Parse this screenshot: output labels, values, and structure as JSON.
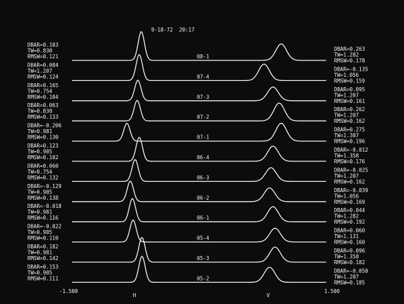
{
  "header": {
    "timestamp": "9-18-72  20:17"
  },
  "rows": [
    {
      "label": "08-1",
      "left": [
        "DBAR=0.103",
        "TW=0.830",
        "RMSW=0.121"
      ],
      "right": [
        "DBAR=0.263",
        "TW=1.282",
        "RMSW=0.178"
      ]
    },
    {
      "label": "07-4",
      "left": [
        "DBAR=0.084",
        "TW=1.207",
        "RMSW=0.124"
      ],
      "right": [
        "DBAR=-0.135",
        "TW=1.056",
        "RMSW=0.159"
      ]
    },
    {
      "label": "07-3",
      "left": [
        "DBAR=0.165",
        "TW=0.754",
        "RMSW=0.104"
      ],
      "right": [
        "DBAR=0.095",
        "TW=1.207",
        "RMSW=0.161"
      ]
    },
    {
      "label": "07-2",
      "left": [
        "DBAR=0.063",
        "TW=0.830",
        "RMSW=0.133"
      ],
      "right": [
        "DBAR=0.262",
        "TW=1.207",
        "RMSW=0.162"
      ]
    },
    {
      "label": "07-1",
      "left": [
        "DBAR=-0.206",
        "TW=0.981",
        "RMSW=0.130"
      ],
      "right": [
        "DBAR=0.275",
        "TW=1.307",
        "RMSW=0.196"
      ]
    },
    {
      "label": "06-4",
      "left": [
        "DBAR=0.123",
        "TW=0.905",
        "RMSW=0.102"
      ],
      "right": [
        "DBAR=-0.012",
        "TW=1.358",
        "RMSW=0.176"
      ]
    },
    {
      "label": "06-3",
      "left": [
        "DBAR=0.060",
        "TW=0.754",
        "RMSW=0.132"
      ],
      "right": [
        "DBAR=-0.025",
        "TW=1.207",
        "RMSW=0.162"
      ]
    },
    {
      "label": "06-2",
      "left": [
        "DBAR=-0.129",
        "TW=0.905",
        "RMSW=0.138"
      ],
      "right": [
        "DBAR=-0.039",
        "TW=1.056",
        "RMSW=0.169"
      ]
    },
    {
      "label": "06-1",
      "left": [
        "DBAR=-0.018",
        "TW=0.981",
        "RMSW=0.116"
      ],
      "right": [
        "DBAR=0.044",
        "TW=1.282",
        "RMSW=0.192"
      ]
    },
    {
      "label": "05-4",
      "left": [
        "DBAR=-0.022",
        "TW=0.905",
        "RMSW=0.110"
      ],
      "right": [
        "DBAR=0.060",
        "TW=1.131",
        "RMSW=0.160"
      ]
    },
    {
      "label": "05-3",
      "left": [
        "DBAR=0.182",
        "TW=0.981",
        "RMSW=0.142"
      ],
      "right": [
        "DBAR=0.096",
        "TW=1.358",
        "RMSW=0.182"
      ]
    },
    {
      "label": "05-2",
      "left": [
        "DBAR=0.153",
        "TW=0.905",
        "RMSW=0.111"
      ],
      "right": [
        "DBAR=-0.050",
        "TW=1.207",
        "RMSW=0.185"
      ]
    }
  ],
  "axis": {
    "min": "-1.500",
    "h": "H",
    "v": "V",
    "max": "1.500"
  }
}
